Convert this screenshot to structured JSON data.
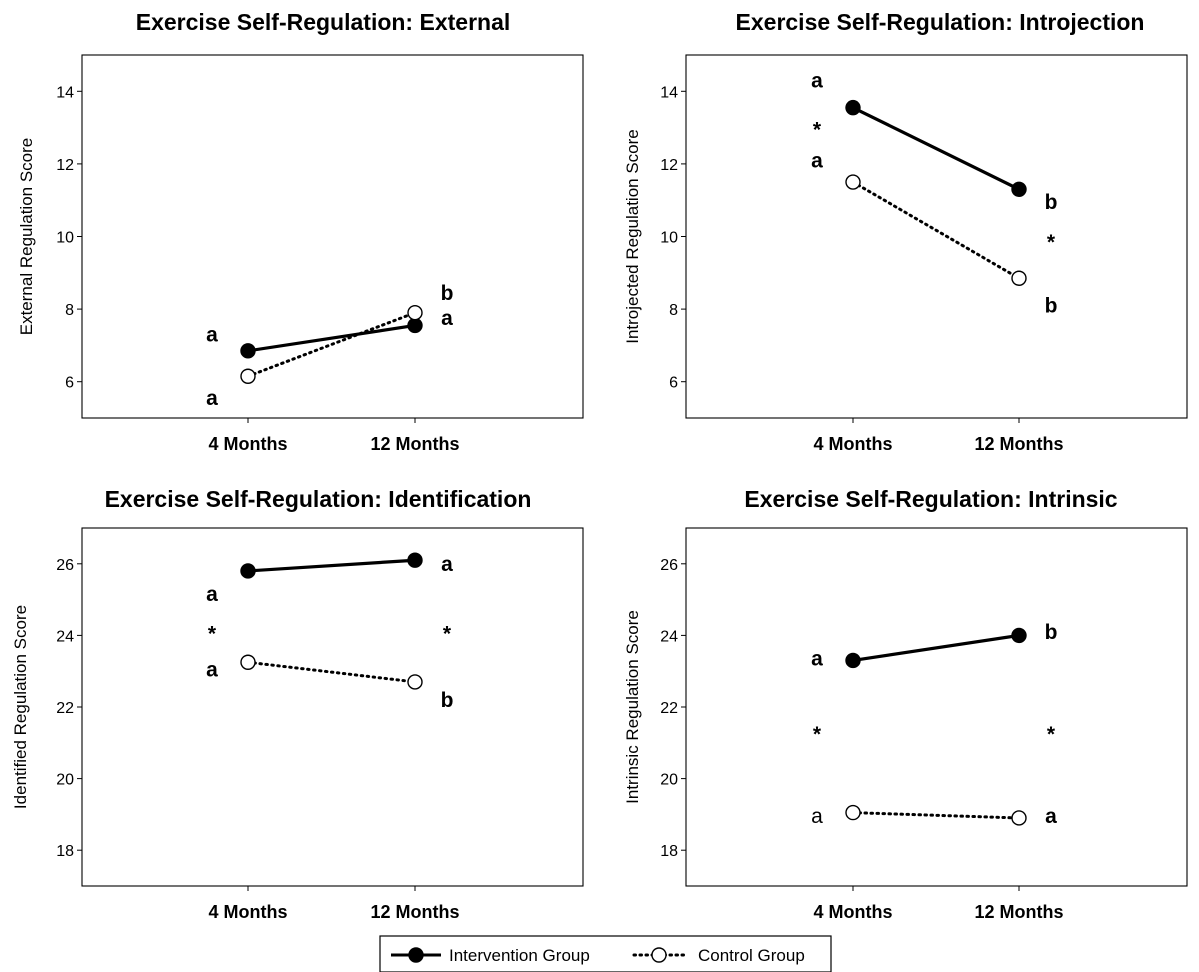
{
  "chart_data": [
    {
      "type": "line",
      "title": "Exercise Self-Regulation: External",
      "xlabel": "",
      "ylabel": "External Regulation Score",
      "ylim": [
        5,
        15
      ],
      "yticks": [
        6,
        8,
        10,
        12,
        14
      ],
      "categories": [
        "4 Months",
        "12 Months"
      ],
      "series": [
        {
          "name": "Intervention Group",
          "values": [
            6.85,
            7.55
          ]
        },
        {
          "name": "Control Group",
          "values": [
            6.15,
            7.9
          ]
        }
      ],
      "annotations": [
        {
          "text": "a",
          "category": 0,
          "y": 7.3,
          "side": "left",
          "bold": true
        },
        {
          "text": "a",
          "category": 0,
          "y": 5.55,
          "side": "left",
          "bold": true
        },
        {
          "text": "b",
          "category": 1,
          "y": 8.45,
          "side": "right",
          "bold": true
        },
        {
          "text": "a",
          "category": 1,
          "y": 7.75,
          "side": "right",
          "bold": true
        }
      ]
    },
    {
      "type": "line",
      "title": "Exercise Self-Regulation: Introjection",
      "xlabel": "",
      "ylabel": "Introjected Regulation Score",
      "ylim": [
        5,
        15
      ],
      "yticks": [
        6,
        8,
        10,
        12,
        14
      ],
      "categories": [
        "4 Months",
        "12 Months"
      ],
      "series": [
        {
          "name": "Intervention Group",
          "values": [
            13.55,
            11.3
          ]
        },
        {
          "name": "Control Group",
          "values": [
            11.5,
            8.85
          ]
        }
      ],
      "annotations": [
        {
          "text": "a",
          "category": 0,
          "y": 14.3,
          "side": "left",
          "bold": true
        },
        {
          "text": "*",
          "category": 0,
          "y": 12.95,
          "side": "left",
          "bold": true
        },
        {
          "text": "a",
          "category": 0,
          "y": 12.1,
          "side": "left",
          "bold": true
        },
        {
          "text": "b",
          "category": 1,
          "y": 10.95,
          "side": "right",
          "bold": true
        },
        {
          "text": "*",
          "category": 1,
          "y": 9.85,
          "side": "right",
          "bold": true
        },
        {
          "text": "b",
          "category": 1,
          "y": 8.1,
          "side": "right",
          "bold": true
        }
      ]
    },
    {
      "type": "line",
      "title": "Exercise Self-Regulation: Identification",
      "xlabel": "",
      "ylabel": "Identified Regulation Score",
      "ylim": [
        17,
        27
      ],
      "yticks": [
        18,
        20,
        22,
        24,
        26
      ],
      "categories": [
        "4 Months",
        "12 Months"
      ],
      "series": [
        {
          "name": "Intervention Group",
          "values": [
            25.8,
            26.1
          ]
        },
        {
          "name": "Control Group",
          "values": [
            23.25,
            22.7
          ]
        }
      ],
      "annotations": [
        {
          "text": "a",
          "category": 0,
          "y": 25.15,
          "side": "left",
          "bold": true
        },
        {
          "text": "*",
          "category": 0,
          "y": 24.05,
          "side": "left",
          "bold": true
        },
        {
          "text": "a",
          "category": 0,
          "y": 23.05,
          "side": "left",
          "bold": true
        },
        {
          "text": "a",
          "category": 1,
          "y": 26.0,
          "side": "right",
          "bold": true
        },
        {
          "text": "*",
          "category": 1,
          "y": 24.05,
          "side": "right",
          "bold": true
        },
        {
          "text": "b",
          "category": 1,
          "y": 22.2,
          "side": "right",
          "bold": true
        }
      ]
    },
    {
      "type": "line",
      "title": "Exercise Self-Regulation: Intrinsic",
      "xlabel": "",
      "ylabel": "Intrinsic Regulation Score",
      "ylim": [
        17,
        27
      ],
      "yticks": [
        18,
        20,
        22,
        24,
        26
      ],
      "categories": [
        "4 Months",
        "12 Months"
      ],
      "series": [
        {
          "name": "Intervention Group",
          "values": [
            23.3,
            24.0
          ]
        },
        {
          "name": "Control Group",
          "values": [
            19.05,
            18.9
          ]
        }
      ],
      "annotations": [
        {
          "text": "a",
          "category": 0,
          "y": 23.35,
          "side": "left",
          "bold": true
        },
        {
          "text": "*",
          "category": 0,
          "y": 21.25,
          "side": "left",
          "bold": true
        },
        {
          "text": "a",
          "category": 0,
          "y": 18.95,
          "side": "left",
          "bold": false
        },
        {
          "text": "b",
          "category": 1,
          "y": 24.1,
          "side": "right",
          "bold": true
        },
        {
          "text": "*",
          "category": 1,
          "y": 21.25,
          "side": "right",
          "bold": true
        },
        {
          "text": "a",
          "category": 1,
          "y": 18.95,
          "side": "right",
          "bold": true
        }
      ]
    }
  ],
  "legend": {
    "placement": "bottom-center",
    "items": [
      {
        "label": "Intervention Group",
        "style": "solid",
        "marker": "filled-circle"
      },
      {
        "label": "Control Group",
        "style": "dotted",
        "marker": "open-circle"
      }
    ]
  },
  "colors": {
    "line": "#000000",
    "background": "#ffffff"
  }
}
